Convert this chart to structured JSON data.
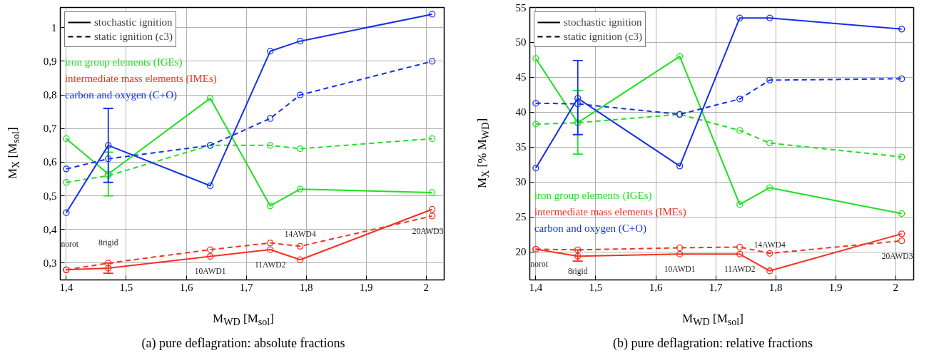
{
  "chart_data": [
    {
      "type": "line",
      "title": "(a)  pure deflagration: absolute fractions",
      "xlabel": "M$_{WD}$ [M$_{sol}$]",
      "ylabel": "M$_{X}$ [M$_{sol}$]",
      "x": [
        1.4,
        1.47,
        1.64,
        1.74,
        1.79,
        2.01
      ],
      "xlim": [
        1.39,
        2.03
      ],
      "ylim": [
        0.25,
        1.06
      ],
      "xticks": [
        {
          "value": 1.4,
          "label": "1,4"
        },
        {
          "value": 1.5,
          "label": "1,5"
        },
        {
          "value": 1.6,
          "label": "1,6"
        },
        {
          "value": 1.7,
          "label": "1,7"
        },
        {
          "value": 1.8,
          "label": "1,8"
        },
        {
          "value": 1.9,
          "label": "1,9"
        },
        2
      ],
      "yticks": [
        {
          "value": 0.3,
          "label": "0,3"
        },
        {
          "value": 0.4,
          "label": "0,4"
        },
        {
          "value": 0.5,
          "label": "0,5"
        },
        {
          "value": 0.6,
          "label": "0,6"
        },
        {
          "value": 0.7,
          "label": "0,7"
        },
        {
          "value": 0.8,
          "label": "0,8"
        },
        {
          "value": 0.9,
          "label": "0,9"
        },
        1
      ],
      "grid": true,
      "marker": "circle",
      "series": [
        {
          "color": "#1ee01e",
          "line_style": "solid",
          "values": [
            0.67,
            0.565,
            0.79,
            0.47,
            0.52,
            0.51
          ],
          "errors": [
            null,
            [
              0.5,
              0.63
            ],
            null,
            null,
            null,
            null
          ]
        },
        {
          "color": "#1ee01e",
          "line_style": "dashed",
          "values": [
            0.54,
            0.56,
            0.65,
            0.65,
            0.64,
            0.67
          ]
        },
        {
          "color": "#f53020",
          "line_style": "solid",
          "values": [
            0.28,
            0.285,
            0.32,
            0.34,
            0.31,
            0.46
          ],
          "errors": [
            null,
            [
              0.27,
              0.3
            ],
            null,
            null,
            null,
            null
          ]
        },
        {
          "color": "#f53020",
          "line_style": "dashed",
          "values": [
            0.28,
            0.3,
            0.34,
            0.36,
            0.35,
            0.44
          ]
        },
        {
          "color": "#1430e8",
          "line_style": "solid",
          "values": [
            0.45,
            0.65,
            0.53,
            0.93,
            0.96,
            1.04
          ],
          "errors": [
            null,
            [
              0.54,
              0.76
            ],
            null,
            null,
            null,
            null
          ]
        },
        {
          "color": "#1430e8",
          "line_style": "dashed",
          "values": [
            0.58,
            0.61,
            0.65,
            0.73,
            0.8,
            0.9
          ]
        }
      ],
      "annotations": [
        "stochastic ignition",
        "static ignition (c3)",
        "iron group elements (IGEs)",
        "intermediate mass elements (IMEs)",
        "carbon and oxygen (C+O)",
        "norot",
        "8rigid",
        "10AWD1",
        "11AWD2",
        "14AWD4",
        "20AWD3"
      ]
    },
    {
      "type": "line",
      "title": "(b)  pure deflagration: relative fractions",
      "xlabel": "M$_{WD}$ [M$_{sol}$]",
      "ylabel": "M$_{X}$ [% M$_{WD}$]",
      "x": [
        1.4,
        1.47,
        1.64,
        1.74,
        1.79,
        2.01
      ],
      "xlim": [
        1.39,
        2.03
      ],
      "ylim": [
        16,
        55
      ],
      "xticks": [
        {
          "value": 1.4,
          "label": "1,4"
        },
        {
          "value": 1.5,
          "label": "1,5"
        },
        {
          "value": 1.6,
          "label": "1,6"
        },
        {
          "value": 1.7,
          "label": "1,7"
        },
        {
          "value": 1.8,
          "label": "1,8"
        },
        {
          "value": 1.9,
          "label": "1,9"
        },
        2
      ],
      "yticks": [
        20,
        25,
        30,
        35,
        40,
        45,
        50,
        55
      ],
      "grid": true,
      "marker": "circle",
      "series": [
        {
          "color": "#1ee01e",
          "line_style": "solid",
          "values": [
            47.7,
            38.5,
            48.0,
            26.8,
            29.2,
            25.5
          ],
          "errors": [
            null,
            [
              34.0,
              43.1
            ],
            null,
            null,
            null,
            null
          ]
        },
        {
          "color": "#1ee01e",
          "line_style": "dashed",
          "values": [
            38.3,
            38.5,
            39.7,
            37.4,
            35.6,
            33.6
          ]
        },
        {
          "color": "#f53020",
          "line_style": "solid",
          "values": [
            20.4,
            19.4,
            19.7,
            19.7,
            17.3,
            22.6
          ],
          "errors": [
            null,
            [
              18.7,
              20.3
            ],
            null,
            null,
            null,
            null
          ]
        },
        {
          "color": "#f53020",
          "line_style": "dashed",
          "values": [
            20.4,
            20.3,
            20.6,
            20.7,
            19.8,
            21.6
          ]
        },
        {
          "color": "#1430e8",
          "line_style": "solid",
          "values": [
            32.0,
            42.0,
            32.3,
            53.5,
            53.5,
            51.9
          ],
          "errors": [
            null,
            [
              36.8,
              47.4
            ],
            null,
            null,
            null,
            null
          ]
        },
        {
          "color": "#1430e8",
          "line_style": "dashed",
          "values": [
            41.3,
            41.2,
            39.7,
            41.9,
            44.6,
            44.8
          ]
        }
      ],
      "annotations": [
        "stochastic ignition",
        "static ignition (c3)",
        "iron group elements (IGEs)",
        "intermediate mass elements (IMEs)",
        "carbon and oxygen (C+O)",
        "norot",
        "8rigid",
        "10AWD1",
        "11AWD2",
        "14AWD4",
        "20AWD3"
      ]
    }
  ]
}
